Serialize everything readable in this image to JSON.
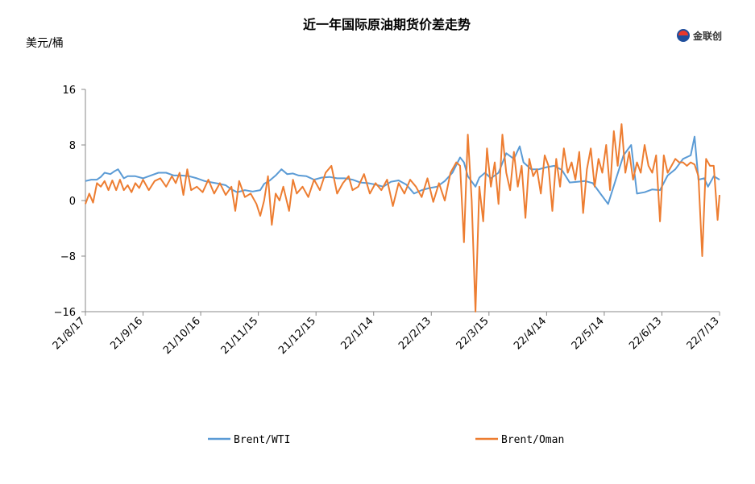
{
  "brand": {
    "name": "金联创"
  },
  "chart_data": {
    "type": "line",
    "title": "近一年国际原油期货价差走势",
    "ylabel": "美元/桶",
    "ylim": [
      -16,
      16
    ],
    "yticks": [
      16,
      8,
      0,
      -8,
      -16
    ],
    "x_range": [
      "21/8/17",
      "22/7/13"
    ],
    "xticks": [
      "21/8/17",
      "21/9/16",
      "21/10/16",
      "21/11/15",
      "21/12/15",
      "22/1/14",
      "22/2/13",
      "22/3/15",
      "22/4/14",
      "22/5/14",
      "22/6/13",
      "22/7/13"
    ],
    "grid": false,
    "legend": "bottom",
    "series": [
      {
        "name": "Brent/WTI",
        "color": "#5b9bd5",
        "points": [
          [
            "21/8/17",
            2.8
          ],
          [
            "21/8/20",
            3.0
          ],
          [
            "21/8/23",
            3.0
          ],
          [
            "21/8/25",
            3.4
          ],
          [
            "21/8/27",
            4.0
          ],
          [
            "21/8/30",
            3.8
          ],
          [
            "21/9/1",
            4.2
          ],
          [
            "21/9/3",
            4.5
          ],
          [
            "21/9/6",
            3.2
          ],
          [
            "21/9/8",
            3.5
          ],
          [
            "21/9/12",
            3.5
          ],
          [
            "21/9/16",
            3.2
          ],
          [
            "21/9/20",
            3.6
          ],
          [
            "21/9/24",
            4.0
          ],
          [
            "21/9/28",
            4.0
          ],
          [
            "21/10/2",
            3.6
          ],
          [
            "21/10/6",
            3.6
          ],
          [
            "21/10/10",
            3.5
          ],
          [
            "21/10/14",
            3.2
          ],
          [
            "21/10/18",
            2.8
          ],
          [
            "21/10/22",
            2.6
          ],
          [
            "21/10/26",
            2.4
          ],
          [
            "21/10/29",
            2.2
          ],
          [
            "21/11/1",
            1.6
          ],
          [
            "21/11/4",
            1.2
          ],
          [
            "21/11/8",
            1.5
          ],
          [
            "21/11/12",
            1.3
          ],
          [
            "21/11/16",
            1.5
          ],
          [
            "21/11/18",
            2.4
          ],
          [
            "21/11/21",
            2.9
          ],
          [
            "21/11/24",
            3.6
          ],
          [
            "21/11/27",
            4.5
          ],
          [
            "21/11/30",
            3.8
          ],
          [
            "21/12/3",
            3.9
          ],
          [
            "21/12/6",
            3.6
          ],
          [
            "21/12/10",
            3.5
          ],
          [
            "21/12/14",
            3.0
          ],
          [
            "21/12/18",
            3.3
          ],
          [
            "21/12/22",
            3.4
          ],
          [
            "21/12/26",
            3.2
          ],
          [
            "21/12/30",
            3.2
          ],
          [
            "22/1/3",
            3.0
          ],
          [
            "22/1/7",
            2.6
          ],
          [
            "22/1/11",
            2.5
          ],
          [
            "22/1/15",
            2.3
          ],
          [
            "22/1/19",
            2.0
          ],
          [
            "22/1/23",
            2.7
          ],
          [
            "22/1/27",
            2.9
          ],
          [
            "22/1/31",
            2.3
          ],
          [
            "22/2/4",
            1.0
          ],
          [
            "22/2/8",
            1.5
          ],
          [
            "22/2/12",
            1.8
          ],
          [
            "22/2/16",
            2.0
          ],
          [
            "22/2/20",
            2.8
          ],
          [
            "22/2/24",
            4.0
          ],
          [
            "22/2/28",
            6.2
          ],
          [
            "22/3/2",
            5.5
          ],
          [
            "22/3/4",
            3.5
          ],
          [
            "22/3/8",
            2.0
          ],
          [
            "22/3/10",
            3.3
          ],
          [
            "22/3/13",
            4.0
          ],
          [
            "22/3/16",
            3.2
          ],
          [
            "22/3/20",
            4.0
          ],
          [
            "22/3/24",
            6.8
          ],
          [
            "22/3/28",
            6.0
          ],
          [
            "22/3/31",
            7.8
          ],
          [
            "22/4/2",
            5.5
          ],
          [
            "22/4/6",
            4.5
          ],
          [
            "22/4/10",
            4.5
          ],
          [
            "22/4/14",
            4.8
          ],
          [
            "22/4/18",
            5.0
          ],
          [
            "22/4/22",
            4.4
          ],
          [
            "22/4/26",
            2.6
          ],
          [
            "22/4/30",
            2.7
          ],
          [
            "22/5/4",
            2.8
          ],
          [
            "22/5/8",
            2.5
          ],
          [
            "22/5/12",
            1.0
          ],
          [
            "22/5/16",
            -0.5
          ],
          [
            "22/5/20",
            3.0
          ],
          [
            "22/5/24",
            6.5
          ],
          [
            "22/5/28",
            8.0
          ],
          [
            "22/5/31",
            1.0
          ],
          [
            "22/6/4",
            1.2
          ],
          [
            "22/6/8",
            1.6
          ],
          [
            "22/6/12",
            1.5
          ],
          [
            "22/6/16",
            3.6
          ],
          [
            "22/6/20",
            4.5
          ],
          [
            "22/6/24",
            6.0
          ],
          [
            "22/6/28",
            6.5
          ],
          [
            "22/6/30",
            9.2
          ],
          [
            "22/7/2",
            3.0
          ],
          [
            "22/7/5",
            3.2
          ],
          [
            "22/7/7",
            2.0
          ],
          [
            "22/7/10",
            3.5
          ],
          [
            "22/7/13",
            3.0
          ]
        ]
      },
      {
        "name": "Brent/Oman",
        "color": "#ed7d31",
        "points": [
          [
            "21/8/17",
            -0.5
          ],
          [
            "21/8/19",
            1.0
          ],
          [
            "21/8/21",
            -0.3
          ],
          [
            "21/8/23",
            2.5
          ],
          [
            "21/8/25",
            2.0
          ],
          [
            "21/8/27",
            2.8
          ],
          [
            "21/8/29",
            1.5
          ],
          [
            "21/8/31",
            2.9
          ],
          [
            "21/9/2",
            1.5
          ],
          [
            "21/9/4",
            3.0
          ],
          [
            "21/9/6",
            1.5
          ],
          [
            "21/9/8",
            2.2
          ],
          [
            "21/9/10",
            1.2
          ],
          [
            "21/9/12",
            2.5
          ],
          [
            "21/9/14",
            1.8
          ],
          [
            "21/9/16",
            3.0
          ],
          [
            "21/9/19",
            1.5
          ],
          [
            "21/9/22",
            2.8
          ],
          [
            "21/9/25",
            3.2
          ],
          [
            "21/9/28",
            2.0
          ],
          [
            "21/10/1",
            3.5
          ],
          [
            "21/10/3",
            2.5
          ],
          [
            "21/10/5",
            4.0
          ],
          [
            "21/10/7",
            0.8
          ],
          [
            "21/10/9",
            4.5
          ],
          [
            "21/10/11",
            1.5
          ],
          [
            "21/10/14",
            2.0
          ],
          [
            "21/10/17",
            1.2
          ],
          [
            "21/10/20",
            3.0
          ],
          [
            "21/10/23",
            1.0
          ],
          [
            "21/10/26",
            2.5
          ],
          [
            "21/10/29",
            0.8
          ],
          [
            "21/11/1",
            2.0
          ],
          [
            "21/11/3",
            -1.5
          ],
          [
            "21/11/5",
            2.8
          ],
          [
            "21/11/8",
            0.5
          ],
          [
            "21/11/11",
            1.0
          ],
          [
            "21/11/14",
            -0.5
          ],
          [
            "21/11/16",
            -2.2
          ],
          [
            "21/11/18",
            0.0
          ],
          [
            "21/11/20",
            3.5
          ],
          [
            "21/11/22",
            -3.5
          ],
          [
            "21/11/24",
            1.0
          ],
          [
            "21/11/26",
            0.0
          ],
          [
            "21/11/28",
            2.0
          ],
          [
            "21/12/1",
            -1.5
          ],
          [
            "21/12/3",
            3.0
          ],
          [
            "21/12/5",
            1.0
          ],
          [
            "21/12/8",
            2.0
          ],
          [
            "21/12/11",
            0.5
          ],
          [
            "21/12/14",
            3.0
          ],
          [
            "21/12/17",
            1.5
          ],
          [
            "21/12/20",
            4.0
          ],
          [
            "21/12/23",
            5.0
          ],
          [
            "21/12/26",
            1.0
          ],
          [
            "21/12/29",
            2.5
          ],
          [
            "22/1/1",
            3.5
          ],
          [
            "22/1/3",
            1.5
          ],
          [
            "22/1/6",
            2.0
          ],
          [
            "22/1/9",
            3.8
          ],
          [
            "22/1/12",
            1.0
          ],
          [
            "22/1/15",
            2.5
          ],
          [
            "22/1/18",
            1.5
          ],
          [
            "22/1/21",
            3.0
          ],
          [
            "22/1/24",
            -0.8
          ],
          [
            "22/1/27",
            2.5
          ],
          [
            "22/1/30",
            1.0
          ],
          [
            "22/2/2",
            3.0
          ],
          [
            "22/2/5",
            2.0
          ],
          [
            "22/2/8",
            0.5
          ],
          [
            "22/2/11",
            3.2
          ],
          [
            "22/2/14",
            -0.2
          ],
          [
            "22/2/17",
            2.5
          ],
          [
            "22/2/20",
            0.0
          ],
          [
            "22/2/23",
            4.0
          ],
          [
            "22/2/26",
            5.5
          ],
          [
            "22/2/28",
            5.0
          ],
          [
            "22/3/2",
            -6.0
          ],
          [
            "22/3/4",
            9.5
          ],
          [
            "22/3/6",
            0.0
          ],
          [
            "22/3/8",
            -16.0
          ],
          [
            "22/3/10",
            2.0
          ],
          [
            "22/3/12",
            -3.0
          ],
          [
            "22/3/14",
            7.5
          ],
          [
            "22/3/16",
            2.0
          ],
          [
            "22/3/18",
            5.5
          ],
          [
            "22/3/20",
            -0.5
          ],
          [
            "22/3/22",
            9.5
          ],
          [
            "22/3/24",
            4.0
          ],
          [
            "22/3/26",
            1.5
          ],
          [
            "22/3/28",
            7.0
          ],
          [
            "22/3/30",
            2.0
          ],
          [
            "22/4/1",
            5.0
          ],
          [
            "22/4/3",
            -2.5
          ],
          [
            "22/4/5",
            6.0
          ],
          [
            "22/4/7",
            3.5
          ],
          [
            "22/4/9",
            4.5
          ],
          [
            "22/4/11",
            1.0
          ],
          [
            "22/4/13",
            6.5
          ],
          [
            "22/4/15",
            5.0
          ],
          [
            "22/4/17",
            -1.5
          ],
          [
            "22/4/19",
            6.0
          ],
          [
            "22/4/21",
            2.0
          ],
          [
            "22/4/23",
            7.5
          ],
          [
            "22/4/25",
            4.0
          ],
          [
            "22/4/27",
            5.5
          ],
          [
            "22/4/29",
            3.0
          ],
          [
            "22/5/1",
            7.0
          ],
          [
            "22/5/3",
            -1.8
          ],
          [
            "22/5/5",
            4.5
          ],
          [
            "22/5/7",
            7.5
          ],
          [
            "22/5/9",
            2.0
          ],
          [
            "22/5/11",
            6.0
          ],
          [
            "22/5/13",
            4.0
          ],
          [
            "22/5/15",
            8.0
          ],
          [
            "22/5/17",
            1.5
          ],
          [
            "22/5/19",
            10.0
          ],
          [
            "22/5/21",
            5.0
          ],
          [
            "22/5/23",
            11.0
          ],
          [
            "22/5/25",
            4.0
          ],
          [
            "22/5/27",
            7.0
          ],
          [
            "22/5/29",
            3.0
          ],
          [
            "22/5/31",
            5.5
          ],
          [
            "22/6/2",
            4.0
          ],
          [
            "22/6/4",
            8.0
          ],
          [
            "22/6/6",
            5.0
          ],
          [
            "22/6/8",
            4.0
          ],
          [
            "22/6/10",
            6.5
          ],
          [
            "22/6/12",
            -3.0
          ],
          [
            "22/6/14",
            6.5
          ],
          [
            "22/6/16",
            4.0
          ],
          [
            "22/6/18",
            5.0
          ],
          [
            "22/6/20",
            6.0
          ],
          [
            "22/6/22",
            5.5
          ],
          [
            "22/6/24",
            5.5
          ],
          [
            "22/6/26",
            5.0
          ],
          [
            "22/6/28",
            5.5
          ],
          [
            "22/6/30",
            5.2
          ],
          [
            "22/7/2",
            3.5
          ],
          [
            "22/7/4",
            -8.0
          ],
          [
            "22/7/6",
            6.0
          ],
          [
            "22/7/8",
            5.0
          ],
          [
            "22/7/10",
            5.0
          ],
          [
            "22/7/12",
            -2.8
          ],
          [
            "22/7/13",
            0.8
          ]
        ]
      }
    ]
  }
}
